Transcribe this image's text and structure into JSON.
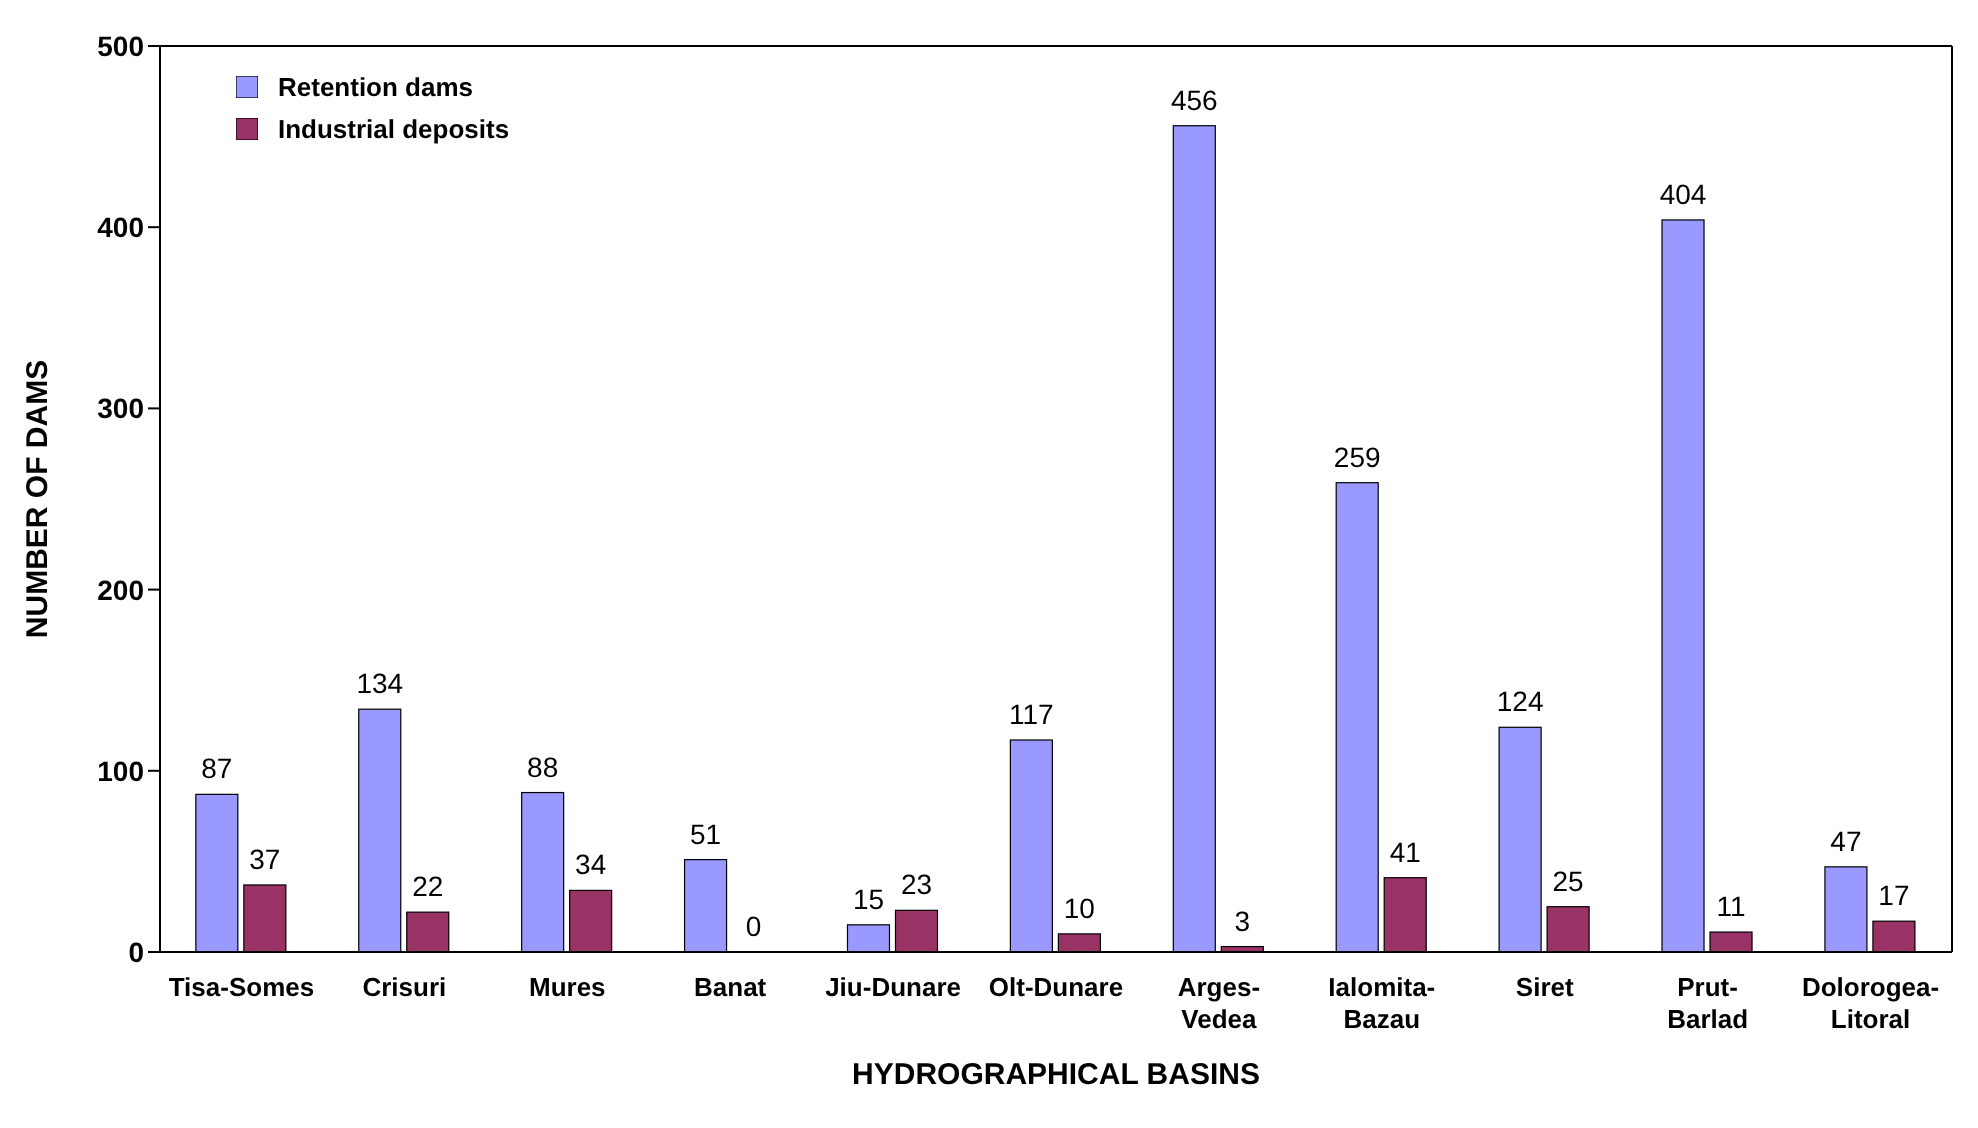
{
  "chart_data": {
    "type": "bar",
    "xlabel": "HYDROGRAPHICAL BASINS",
    "ylabel": "NUMBER OF DAMS",
    "categories": [
      "Tisa-Somes",
      "Crisuri",
      "Mures",
      "Banat",
      "Jiu-Dunare",
      "Olt-Dunare",
      "Arges-\nVedea",
      "Ialomita-\nBazau",
      "Siret",
      "Prut-\nBarlad",
      "Dolorogea-\nLitoral"
    ],
    "series": [
      {
        "name": "Retention dams",
        "color": "#9999ff",
        "values": [
          87,
          134,
          88,
          51,
          15,
          117,
          456,
          259,
          124,
          404,
          47
        ]
      },
      {
        "name": "Industrial deposits",
        "color": "#993366",
        "values": [
          37,
          22,
          34,
          0,
          23,
          10,
          3,
          41,
          25,
          11,
          17
        ]
      }
    ],
    "ylim": [
      0,
      500
    ],
    "yticks": [
      0,
      100,
      200,
      300,
      400,
      500
    ],
    "grid": false,
    "legend": "top left",
    "data_labels": true
  }
}
